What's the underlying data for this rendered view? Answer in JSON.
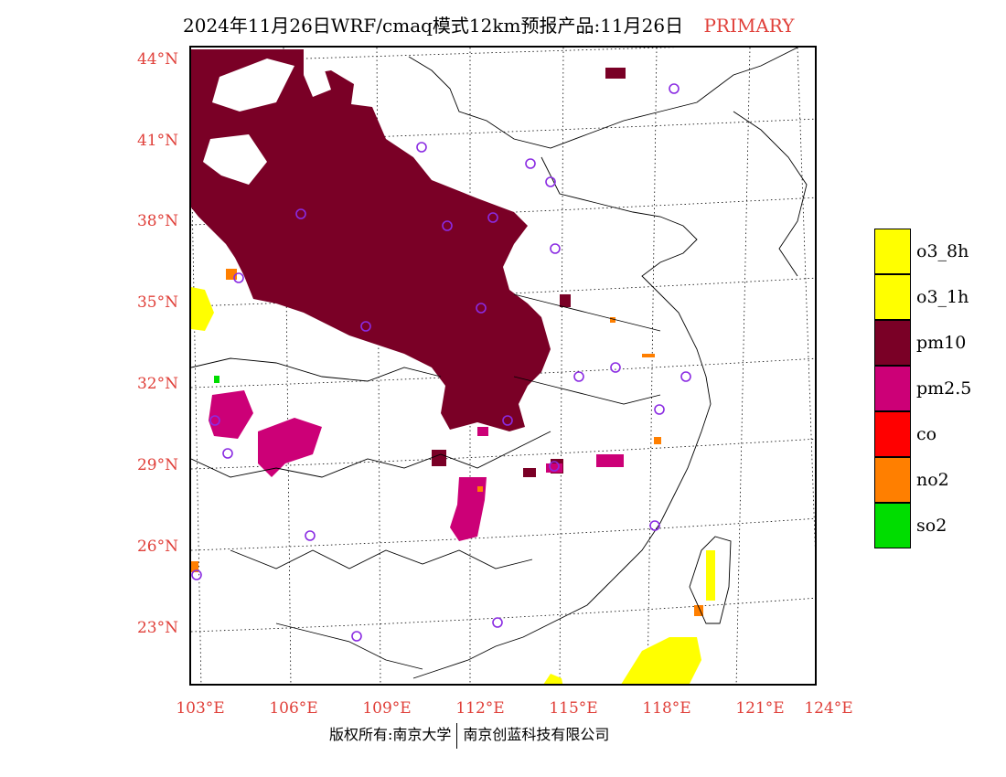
{
  "title": {
    "main": "2024年11月26日WRF/cmaq模式12km预报产品:11月26日",
    "tag": "PRIMARY"
  },
  "axes": {
    "lat_labels": [
      "44°N",
      "41°N",
      "38°N",
      "35°N",
      "32°N",
      "29°N",
      "26°N",
      "23°N"
    ],
    "lon_labels": [
      "103°E",
      "106°E",
      "109°E",
      "112°E",
      "115°E",
      "118°E",
      "121°E",
      "124°E"
    ]
  },
  "legend": [
    {
      "label": "o3_8h",
      "color": "#ffff00"
    },
    {
      "label": "o3_1h",
      "color": "#ffff00"
    },
    {
      "label": "pm10",
      "color": "#7a0026"
    },
    {
      "label": "pm2.5",
      "color": "#cc0077"
    },
    {
      "label": "co",
      "color": "#ff0000"
    },
    {
      "label": "no2",
      "color": "#ff7f00"
    },
    {
      "label": "so2",
      "color": "#00dd00"
    }
  ],
  "footer": {
    "left": "版权所有:南京大学",
    "right": "南京创蓝科技有限公司"
  }
}
